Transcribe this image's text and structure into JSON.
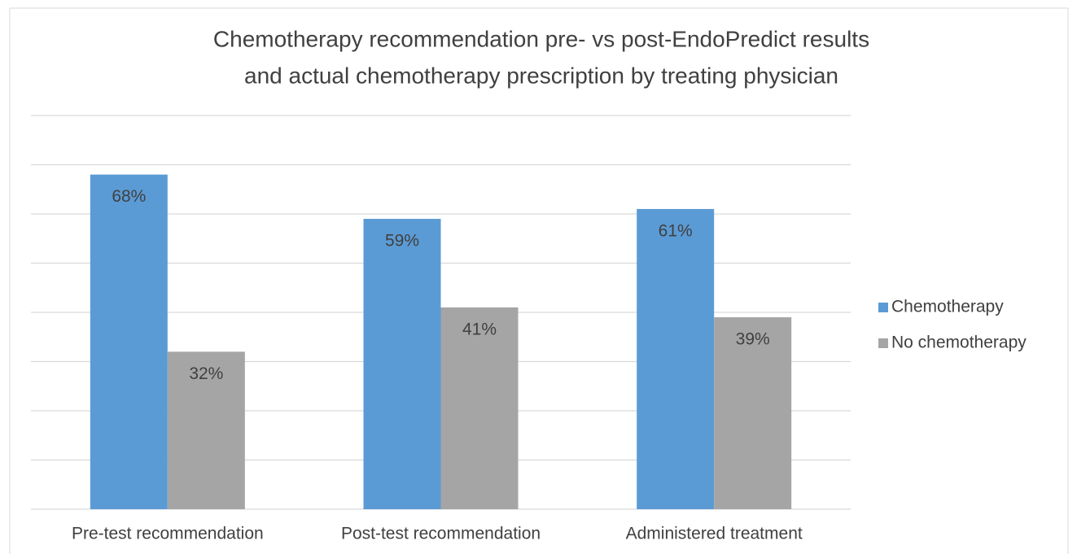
{
  "chart_data": {
    "type": "bar",
    "title": [
      "Chemotherapy recommendation pre- vs post-EndoPredict results",
      "and actual chemotherapy prescription by treating physician"
    ],
    "categories": [
      "Pre-test recommendation",
      "Post-test recommendation",
      "Administered treatment"
    ],
    "series": [
      {
        "name": "Chemotherapy",
        "color": "#5b9bd5",
        "values": [
          68,
          59,
          61
        ],
        "value_labels": [
          "68%",
          "59%",
          "61%"
        ]
      },
      {
        "name": "No chemotherapy",
        "color": "#a5a5a5",
        "values": [
          32,
          41,
          39
        ],
        "value_labels": [
          "32%",
          "41%",
          "39%"
        ]
      }
    ],
    "ylim": [
      0,
      80
    ],
    "yticks": [
      0,
      10,
      20,
      30,
      40,
      50,
      60,
      70,
      80
    ],
    "grid": true,
    "legend": "right"
  }
}
